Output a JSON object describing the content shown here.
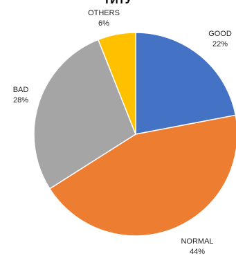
{
  "chart_data": {
    "type": "pie",
    "title": "ТИТУ",
    "start_angle_deg": 0,
    "direction": "clockwise",
    "slices": [
      {
        "category": "GOOD",
        "value": 22,
        "label": "22%",
        "color": "#4472C4"
      },
      {
        "category": "NORMAL",
        "value": 44,
        "label": "44%",
        "color": "#ED7D31"
      },
      {
        "category": "BAD",
        "value": 28,
        "label": "28%",
        "color": "#A5A5A5"
      },
      {
        "category": "OTHERS",
        "value": 6,
        "label": "6%",
        "color": "#FFC000"
      }
    ]
  }
}
